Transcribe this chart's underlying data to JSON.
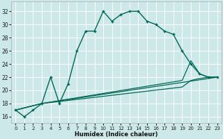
{
  "xlabel": "Humidex (Indice chaleur)",
  "bg_color": "#cce8e8",
  "grid_color": "#ffffff",
  "line_color": "#006655",
  "xlim": [
    -0.5,
    23.5
  ],
  "ylim": [
    15.0,
    33.5
  ],
  "xticks": [
    0,
    1,
    2,
    3,
    4,
    5,
    6,
    7,
    8,
    9,
    10,
    11,
    12,
    13,
    14,
    15,
    16,
    17,
    18,
    19,
    20,
    21,
    22,
    23
  ],
  "yticks": [
    16,
    18,
    20,
    22,
    24,
    26,
    28,
    30,
    32
  ],
  "main_line": {
    "x": [
      0,
      1,
      2,
      3,
      4,
      5,
      6,
      7,
      8,
      9,
      10,
      11,
      12,
      13,
      14,
      15,
      16,
      17,
      18,
      19,
      20,
      21,
      22,
      23
    ],
    "y": [
      17,
      16,
      17,
      18,
      22,
      18,
      21,
      26,
      29,
      29,
      32,
      30.5,
      31.5,
      32,
      32,
      30.5,
      30,
      29,
      28.5,
      26,
      24,
      22.5,
      22,
      22
    ]
  },
  "line_fan1": {
    "x": [
      0,
      3,
      23
    ],
    "y": [
      17,
      18,
      22
    ]
  },
  "line_fan2": {
    "x": [
      0,
      3,
      19,
      20,
      21,
      22,
      23
    ],
    "y": [
      17,
      18,
      21.5,
      24.5,
      22.5,
      22,
      22
    ]
  },
  "line_fan3": {
    "x": [
      0,
      3,
      19,
      20,
      21,
      22,
      23
    ],
    "y": [
      17,
      18,
      20.5,
      21.5,
      21.8,
      22,
      22
    ]
  }
}
